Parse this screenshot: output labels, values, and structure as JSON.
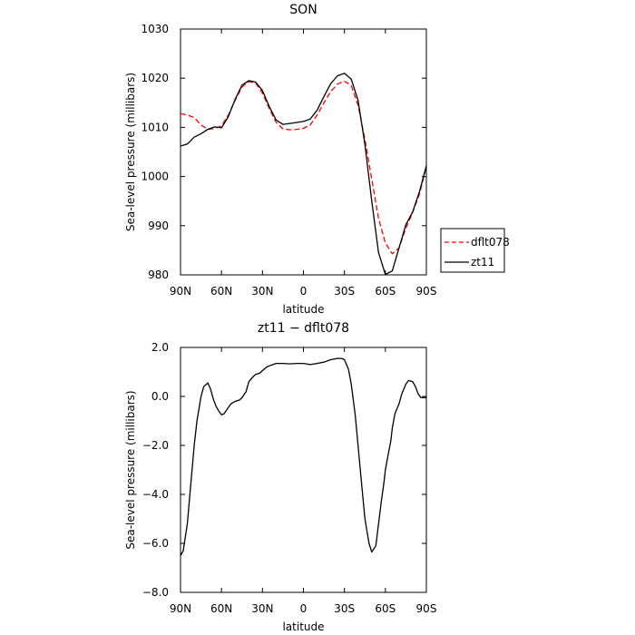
{
  "chart_data": [
    {
      "type": "line",
      "title": "SON",
      "xlabel": "latitude",
      "ylabel": "Sea-level pressure (millibars)",
      "xlim": [
        90,
        -90
      ],
      "ylim": [
        980,
        1030
      ],
      "x_ticks": [
        90,
        60,
        30,
        0,
        -30,
        -60,
        -90
      ],
      "x_tick_labels": [
        "90N",
        "60N",
        "30N",
        "0",
        "30S",
        "60S",
        "90S"
      ],
      "y_ticks": [
        980,
        990,
        1000,
        1010,
        1020,
        1030
      ],
      "y_tick_labels": [
        "980",
        "990",
        "1000",
        "1010",
        "1020",
        "1030"
      ],
      "legend": "right",
      "series": [
        {
          "name": "dflt078",
          "color": "#ff0000",
          "dash": "dashed",
          "x": [
            90,
            85,
            80,
            75,
            70,
            65,
            60,
            55,
            50,
            45,
            40,
            35,
            30,
            25,
            20,
            15,
            10,
            5,
            0,
            -5,
            -10,
            -15,
            -20,
            -25,
            -30,
            -35,
            -40,
            -45,
            -50,
            -55,
            -60,
            -65,
            -70,
            -75,
            -80,
            -85,
            -90
          ],
          "y": [
            1012.8,
            1012.5,
            1012.0,
            1010.5,
            1009.6,
            1009.8,
            1010.3,
            1012.5,
            1015.5,
            1018.2,
            1019.3,
            1019.0,
            1017.0,
            1013.8,
            1011.0,
            1009.7,
            1009.5,
            1009.6,
            1009.8,
            1010.5,
            1012.5,
            1015.0,
            1017.3,
            1018.8,
            1019.4,
            1018.5,
            1014.5,
            1007.5,
            999.5,
            991.5,
            986.5,
            984.3,
            985.5,
            989.5,
            992.7,
            996.5,
            1002.0
          ]
        },
        {
          "name": "zt11",
          "color": "#000000",
          "dash": "solid",
          "x": [
            90,
            85,
            80,
            75,
            70,
            65,
            60,
            55,
            50,
            45,
            40,
            35,
            30,
            25,
            20,
            15,
            10,
            5,
            0,
            -5,
            -10,
            -15,
            -20,
            -25,
            -30,
            -35,
            -40,
            -45,
            -50,
            -55,
            -60,
            -65,
            -70,
            -75,
            -80,
            -85,
            -90
          ],
          "y": [
            1006.2,
            1006.6,
            1008.0,
            1008.7,
            1009.6,
            1010.1,
            1009.9,
            1012.2,
            1015.7,
            1018.6,
            1019.5,
            1019.2,
            1017.5,
            1014.2,
            1011.5,
            1010.6,
            1010.8,
            1011.0,
            1011.2,
            1011.7,
            1013.5,
            1016.3,
            1018.9,
            1020.5,
            1021.0,
            1019.8,
            1015.5,
            1006.5,
            995.0,
            984.5,
            980.1,
            980.8,
            985.5,
            990.2,
            992.8,
            997.0,
            1002.2
          ]
        }
      ]
    },
    {
      "type": "line",
      "title": "zt11 − dflt078",
      "xlabel": "latitude",
      "ylabel": "Sea-level pressure (millibars)",
      "xlim": [
        90,
        -90
      ],
      "ylim": [
        -8.0,
        2.0
      ],
      "x_ticks": [
        90,
        60,
        30,
        0,
        -30,
        -60,
        -90
      ],
      "x_tick_labels": [
        "90N",
        "60N",
        "30N",
        "0",
        "30S",
        "60S",
        "90S"
      ],
      "y_ticks": [
        -8,
        -6,
        -4,
        -2,
        0,
        2
      ],
      "y_tick_labels": [
        "−8.0",
        "−6.0",
        "−4.0",
        "−2.0",
        "0.0",
        "2.0"
      ],
      "series": [
        {
          "color": "#000000",
          "dash": "solid",
          "x": [
            90,
            88,
            85,
            82,
            80,
            78,
            75,
            73,
            70,
            68,
            66,
            64,
            62,
            60,
            58,
            55,
            53,
            50,
            47,
            45,
            42,
            40,
            37,
            35,
            32,
            30,
            27,
            25,
            20,
            15,
            10,
            5,
            0,
            -5,
            -10,
            -15,
            -20,
            -25,
            -28,
            -30,
            -33,
            -35,
            -38,
            -40,
            -43,
            -45,
            -48,
            -50,
            -53,
            -55,
            -57,
            -59,
            -60,
            -62,
            -64,
            -65,
            -67,
            -70,
            -72,
            -75,
            -77,
            -80,
            -82,
            -84,
            -86,
            -88,
            -90
          ],
          "y": [
            -6.5,
            -6.3,
            -5.2,
            -3.3,
            -2.0,
            -1.0,
            0.0,
            0.4,
            0.55,
            0.3,
            -0.1,
            -0.4,
            -0.6,
            -0.75,
            -0.7,
            -0.45,
            -0.3,
            -0.2,
            -0.15,
            -0.05,
            0.2,
            0.6,
            0.8,
            0.9,
            0.95,
            1.05,
            1.2,
            1.25,
            1.35,
            1.35,
            1.33,
            1.35,
            1.35,
            1.3,
            1.35,
            1.4,
            1.5,
            1.55,
            1.55,
            1.5,
            1.1,
            0.5,
            -0.8,
            -2.0,
            -3.8,
            -5.0,
            -6.0,
            -6.35,
            -6.1,
            -5.2,
            -4.3,
            -3.5,
            -3.0,
            -2.4,
            -1.8,
            -1.3,
            -0.7,
            -0.3,
            0.1,
            0.5,
            0.65,
            0.6,
            0.4,
            0.1,
            -0.05,
            -0.05,
            -0.05
          ]
        }
      ]
    }
  ]
}
